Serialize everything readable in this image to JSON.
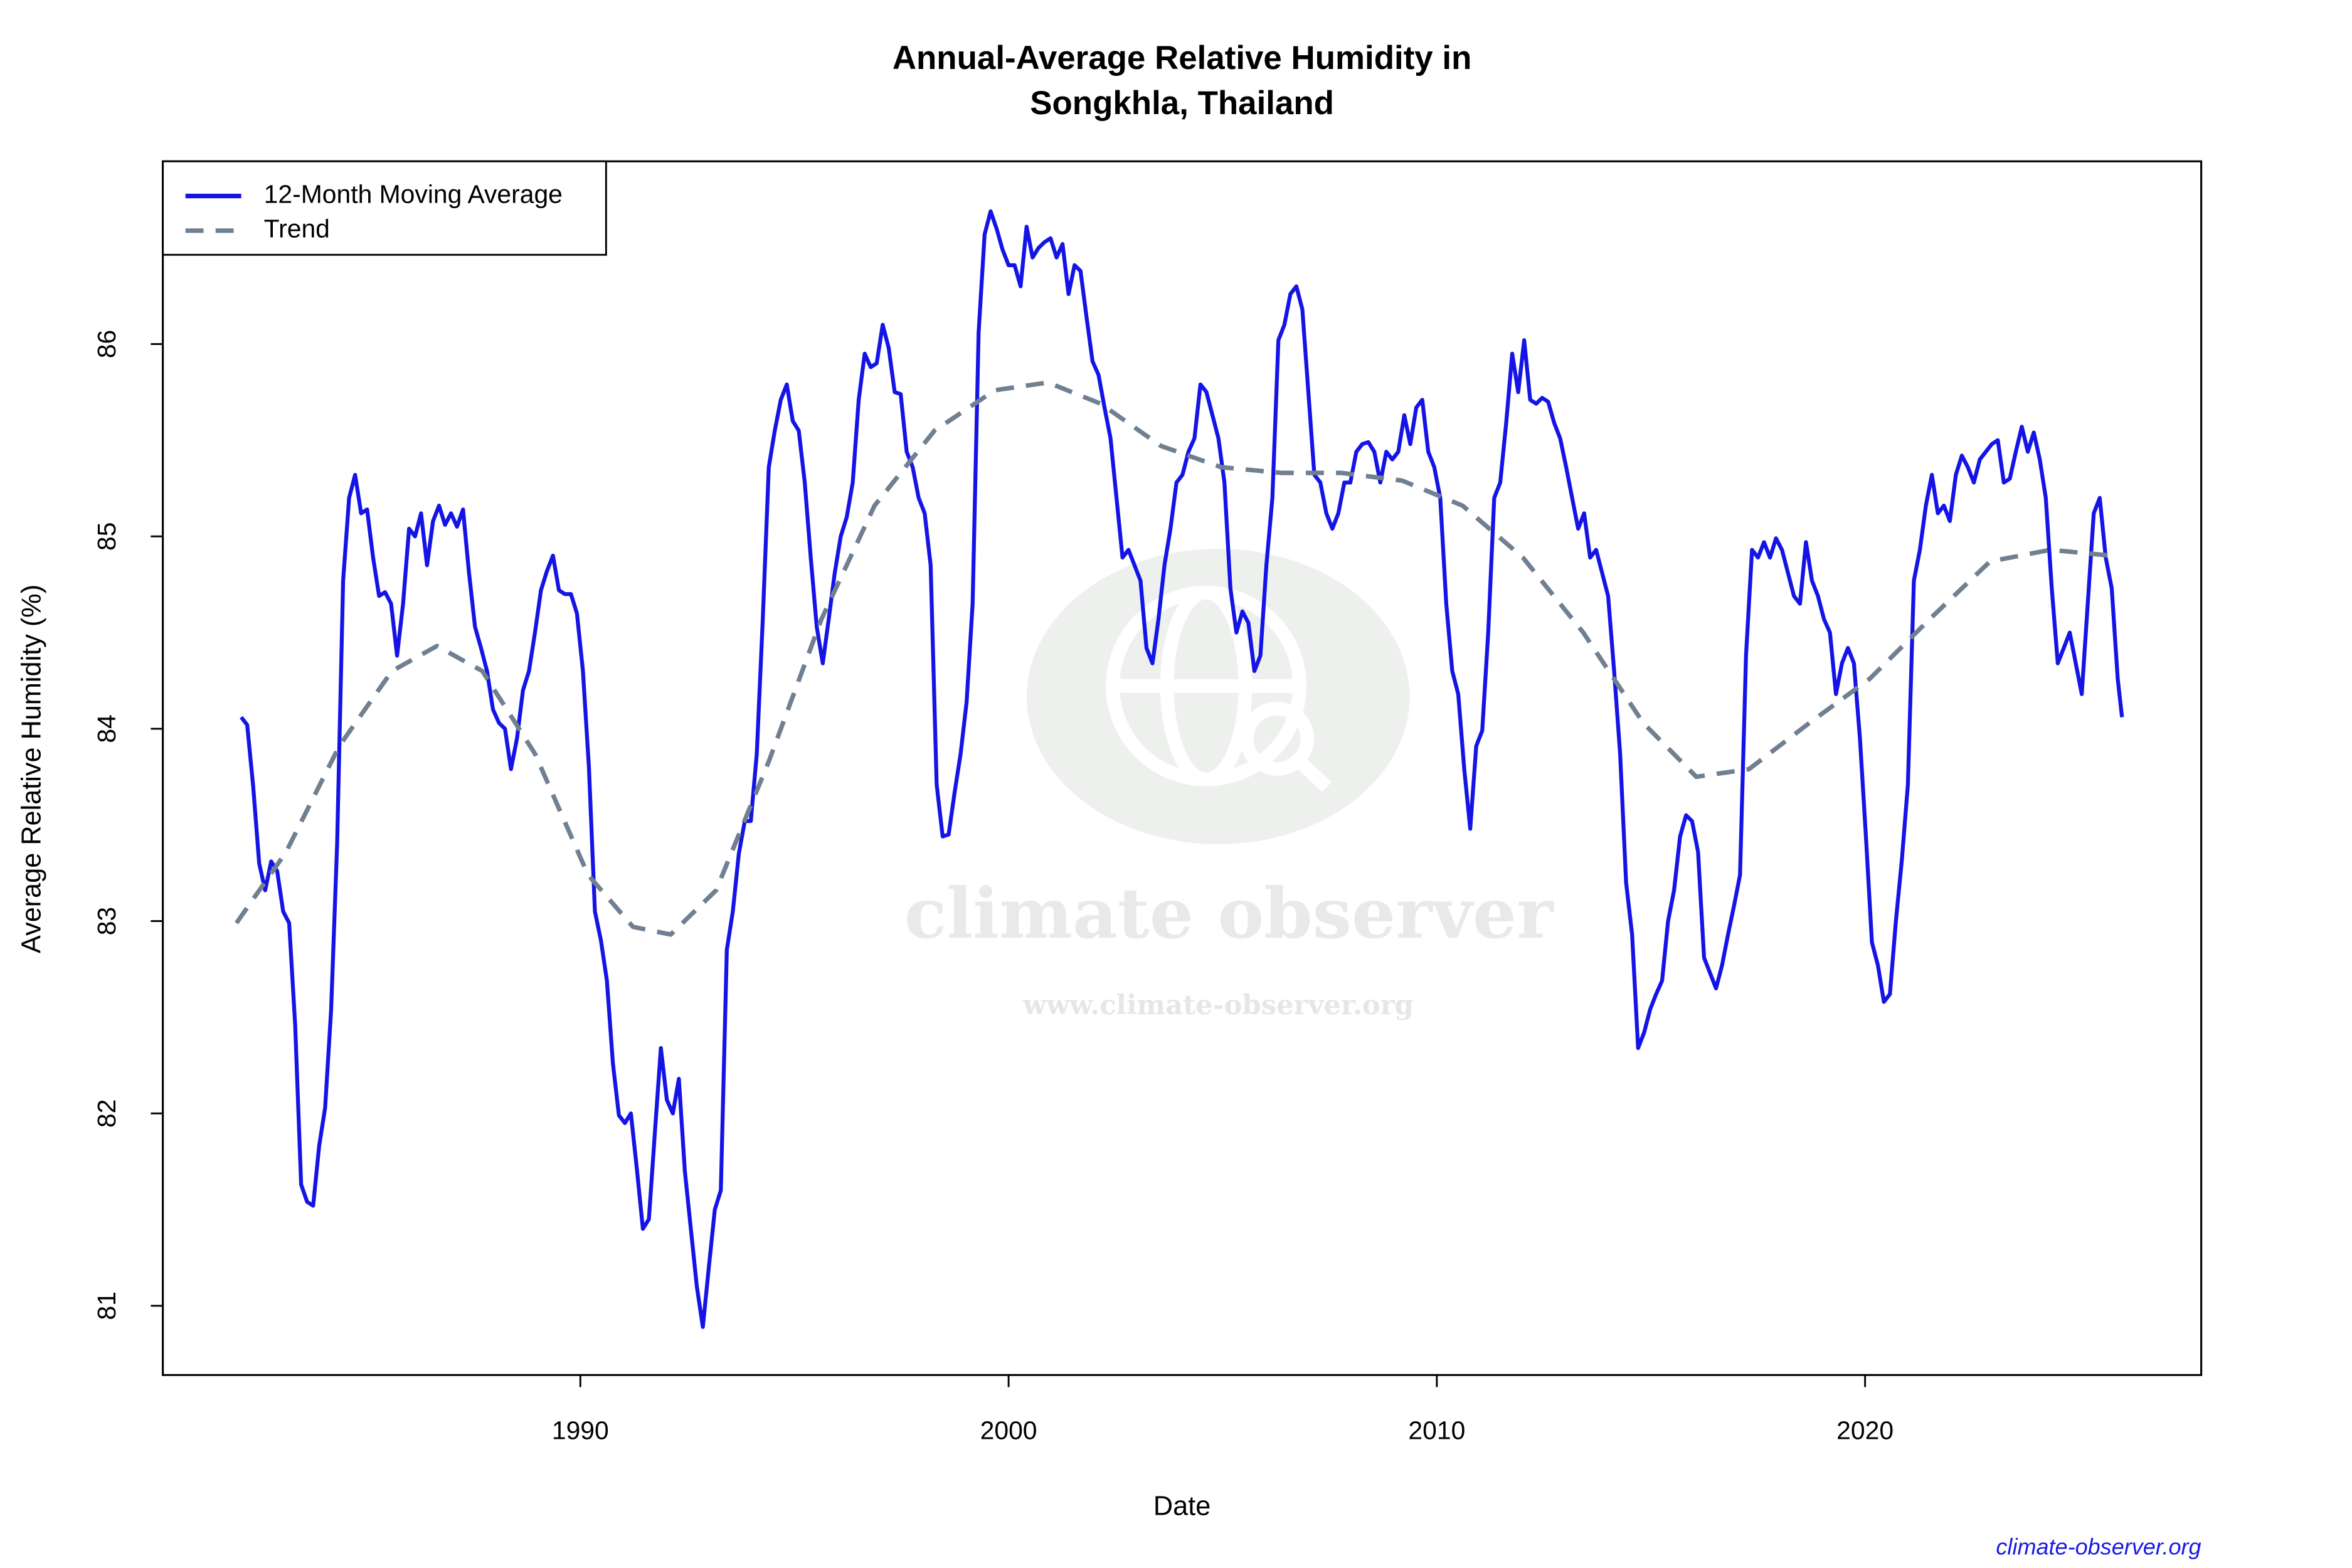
{
  "chart_data": {
    "type": "line",
    "title": [
      "Annual-Average Relative Humidity in",
      "Songkhla, Thailand"
    ],
    "xlabel": "Date",
    "ylabel": "Average Relative Humidity (%)",
    "source": "climate-observer.org",
    "watermark": [
      "climate observer",
      "www.climate-observer.org"
    ],
    "xlim": [
      1980.25,
      2027.85
    ],
    "ylim": [
      80.64,
      86.95
    ],
    "xticks": [
      1990,
      2000,
      2010,
      2020
    ],
    "yticks": [
      81,
      82,
      83,
      84,
      85,
      86
    ],
    "grid": false,
    "legend": "top-left",
    "series": [
      {
        "name": "12-Month Moving Average",
        "color": "#1414e6",
        "linestyle": "solid",
        "x": [
          1982.08,
          1982.22,
          1982.36,
          1982.5,
          1982.64,
          1982.78,
          1982.92,
          1983.06,
          1983.2,
          1983.34,
          1983.48,
          1983.62,
          1983.76,
          1983.9,
          1984.04,
          1984.18,
          1984.32,
          1984.46,
          1984.6,
          1984.74,
          1984.88,
          1985.02,
          1985.16,
          1985.3,
          1985.44,
          1985.58,
          1985.72,
          1985.86,
          1986,
          1986.14,
          1986.28,
          1986.42,
          1986.56,
          1986.7,
          1986.84,
          1986.98,
          1987.12,
          1987.26,
          1987.4,
          1987.54,
          1987.68,
          1987.82,
          1987.96,
          1988.1,
          1988.24,
          1988.38,
          1988.52,
          1988.66,
          1988.8,
          1988.94,
          1989.08,
          1989.22,
          1989.36,
          1989.5,
          1989.64,
          1989.78,
          1989.92,
          1990.06,
          1990.2,
          1990.34,
          1990.48,
          1990.62,
          1990.76,
          1990.9,
          1991.04,
          1991.18,
          1991.32,
          1991.46,
          1991.6,
          1991.74,
          1991.88,
          1992.02,
          1992.16,
          1992.3,
          1992.44,
          1992.58,
          1992.72,
          1992.86,
          1993,
          1993.14,
          1993.28,
          1993.42,
          1993.56,
          1993.7,
          1993.84,
          1993.98,
          1994.12,
          1994.26,
          1994.4,
          1994.54,
          1994.68,
          1994.82,
          1994.96,
          1995.1,
          1995.24,
          1995.38,
          1995.52,
          1995.66,
          1995.8,
          1995.94,
          1996.08,
          1996.22,
          1996.36,
          1996.5,
          1996.64,
          1996.78,
          1996.92,
          1997.06,
          1997.2,
          1997.34,
          1997.48,
          1997.62,
          1997.76,
          1997.9,
          1998.04,
          1998.18,
          1998.32,
          1998.46,
          1998.6,
          1998.74,
          1998.88,
          1999.02,
          1999.16,
          1999.3,
          1999.44,
          1999.58,
          1999.72,
          1999.86,
          2000,
          2000.14,
          2000.28,
          2000.42,
          2000.56,
          2000.7,
          2000.84,
          2000.98,
          2001.12,
          2001.26,
          2001.4,
          2001.54,
          2001.68,
          2001.82,
          2001.96,
          2002.1,
          2002.24,
          2002.38,
          2002.52,
          2002.66,
          2002.8,
          2002.94,
          2003.08,
          2003.22,
          2003.36,
          2003.5,
          2003.64,
          2003.78,
          2003.92,
          2004.06,
          2004.2,
          2004.34,
          2004.48,
          2004.62,
          2004.76,
          2004.9,
          2005.04,
          2005.18,
          2005.32,
          2005.46,
          2005.6,
          2005.74,
          2005.88,
          2006.02,
          2006.16,
          2006.3,
          2006.44,
          2006.58,
          2006.72,
          2006.86,
          2007,
          2007.14,
          2007.28,
          2007.42,
          2007.56,
          2007.7,
          2007.84,
          2007.98,
          2008.12,
          2008.26,
          2008.4,
          2008.54,
          2008.68,
          2008.82,
          2008.96,
          2009.1,
          2009.24,
          2009.38,
          2009.52,
          2009.66,
          2009.8,
          2009.94,
          2010.08,
          2010.22,
          2010.36,
          2010.5,
          2010.64,
          2010.78,
          2010.92,
          2011.06,
          2011.2,
          2011.34,
          2011.48,
          2011.62,
          2011.76,
          2011.9,
          2012.04,
          2012.18,
          2012.32,
          2012.46,
          2012.6,
          2012.74,
          2012.88,
          2013.02,
          2013.16,
          2013.3,
          2013.44,
          2013.58,
          2013.72,
          2013.86,
          2014,
          2014.14,
          2014.28,
          2014.42,
          2014.56,
          2014.7,
          2014.84,
          2014.98,
          2015.12,
          2015.26,
          2015.4,
          2015.54,
          2015.68,
          2015.82,
          2015.96,
          2016.1,
          2016.24,
          2016.38,
          2016.52,
          2016.66,
          2016.8,
          2016.94,
          2017.08,
          2017.22,
          2017.36,
          2017.5,
          2017.64,
          2017.78,
          2017.92,
          2018.06,
          2018.2,
          2018.34,
          2018.48,
          2018.62,
          2018.76,
          2018.9,
          2019.04,
          2019.18,
          2019.32,
          2019.46,
          2019.6,
          2019.74,
          2019.88,
          2020.02,
          2020.16,
          2020.3,
          2020.44,
          2020.58,
          2020.72,
          2020.86,
          2021,
          2021.14,
          2021.28,
          2021.42,
          2021.56,
          2021.7,
          2021.84,
          2021.98,
          2022.12,
          2022.26,
          2022.4,
          2022.54,
          2022.68,
          2022.82,
          2022.96,
          2023.1,
          2023.24,
          2023.38,
          2023.52,
          2023.66,
          2023.8,
          2023.94,
          2024.08,
          2024.22,
          2024.36,
          2024.5,
          2024.64,
          2024.78,
          2024.92,
          2025.06,
          2025.2,
          2025.34,
          2025.48,
          2025.62,
          2025.76,
          2025.9,
          2026.0
        ],
        "values": [
          84.06,
          84.02,
          83.7,
          83.3,
          83.16,
          83.31,
          83.26,
          83.05,
          82.99,
          82.46,
          81.63,
          81.54,
          81.52,
          81.83,
          82.03,
          82.54,
          83.4,
          84.77,
          85.2,
          85.32,
          85.12,
          85.14,
          84.89,
          84.69,
          84.71,
          84.65,
          84.38,
          84.65,
          85.04,
          85.0,
          85.12,
          84.85,
          85.08,
          85.16,
          85.06,
          85.12,
          85.05,
          85.14,
          84.81,
          84.53,
          84.42,
          84.3,
          84.1,
          84.03,
          84.0,
          83.79,
          83.95,
          84.2,
          84.3,
          84.5,
          84.72,
          84.82,
          84.9,
          84.72,
          84.7,
          84.7,
          84.6,
          84.3,
          83.8,
          83.05,
          82.9,
          82.69,
          82.26,
          81.99,
          81.95,
          82.0,
          81.71,
          81.4,
          81.45,
          81.9,
          82.34,
          82.07,
          82.0,
          82.18,
          81.7,
          81.4,
          81.1,
          80.89,
          81.2,
          81.5,
          81.6,
          82.85,
          83.05,
          83.35,
          83.52,
          83.52,
          83.87,
          84.57,
          85.36,
          85.55,
          85.71,
          85.79,
          85.6,
          85.55,
          85.28,
          84.89,
          84.53,
          84.34,
          84.57,
          84.81,
          85.0,
          85.1,
          85.28,
          85.71,
          85.95,
          85.88,
          85.9,
          86.1,
          85.98,
          85.75,
          85.74,
          85.44,
          85.36,
          85.2,
          85.12,
          84.85,
          83.71,
          83.44,
          83.45,
          83.67,
          83.87,
          84.14,
          84.65,
          86.06,
          86.57,
          86.69,
          86.6,
          86.49,
          86.41,
          86.41,
          86.3,
          86.61,
          86.45,
          86.5,
          86.53,
          86.55,
          86.45,
          86.52,
          86.26,
          86.41,
          86.38,
          86.14,
          85.91,
          85.84,
          85.67,
          85.51,
          85.2,
          84.89,
          84.93,
          84.85,
          84.77,
          84.42,
          84.34,
          84.57,
          84.85,
          85.04,
          85.28,
          85.32,
          85.44,
          85.51,
          85.79,
          85.75,
          85.63,
          85.51,
          85.28,
          84.73,
          84.5,
          84.61,
          84.55,
          84.3,
          84.38,
          84.85,
          85.2,
          86.02,
          86.1,
          86.26,
          86.3,
          86.18,
          85.75,
          85.32,
          85.28,
          85.12,
          85.04,
          85.12,
          85.28,
          85.28,
          85.44,
          85.48,
          85.49,
          85.44,
          85.28,
          85.44,
          85.4,
          85.44,
          85.63,
          85.48,
          85.67,
          85.71,
          85.44,
          85.36,
          85.2,
          84.65,
          84.3,
          84.18,
          83.79,
          83.48,
          83.91,
          83.99,
          84.5,
          85.2,
          85.28,
          85.59,
          85.95,
          85.75,
          86.02,
          85.71,
          85.69,
          85.72,
          85.7,
          85.59,
          85.51,
          85.36,
          85.2,
          85.04,
          85.12,
          84.89,
          84.93,
          84.81,
          84.69,
          84.3,
          83.87,
          83.2,
          82.93,
          82.34,
          82.42,
          82.54,
          82.62,
          82.69,
          83.0,
          83.16,
          83.44,
          83.55,
          83.52,
          83.36,
          82.81,
          82.73,
          82.65,
          82.77,
          82.93,
          83.08,
          83.24,
          84.38,
          84.93,
          84.89,
          84.97,
          84.89,
          84.99,
          84.93,
          84.81,
          84.69,
          84.65,
          84.97,
          84.77,
          84.69,
          84.57,
          84.5,
          84.18,
          84.34,
          84.42,
          84.34,
          83.95,
          83.44,
          82.89,
          82.77,
          82.58,
          82.62,
          83.0,
          83.32,
          83.71,
          84.77,
          84.93,
          85.16,
          85.32,
          85.12,
          85.16,
          85.08,
          85.32,
          85.42,
          85.36,
          85.28,
          85.4,
          85.44,
          85.48,
          85.5,
          85.28,
          85.3,
          85.44,
          85.57,
          85.44,
          85.54,
          85.4,
          85.2,
          84.73,
          84.34,
          84.42,
          84.5,
          84.34,
          84.18,
          84.65,
          85.12,
          85.2,
          84.89,
          84.73,
          84.26,
          84.06
        ]
      },
      {
        "name": "Trend",
        "color": "#708090",
        "linestyle": "dashed",
        "x": [
          1981.97,
          1983.13,
          1984.37,
          1985.6,
          1986.65,
          1987.71,
          1988.94,
          1990.18,
          1991.23,
          1992.11,
          1993.17,
          1994.4,
          1995.63,
          1996.87,
          1998.27,
          1999.68,
          2000.92,
          2002.15,
          2003.56,
          2004.96,
          2006.37,
          2007.78,
          2009.19,
          2010.6,
          2012.01,
          2013.42,
          2014.82,
          2016.06,
          2017.29,
          2018.7,
          2020.11,
          2021.51,
          2022.92,
          2024.33,
          2025.74
        ],
        "values": [
          82.99,
          83.36,
          83.91,
          84.3,
          84.43,
          84.3,
          83.87,
          83.24,
          82.97,
          82.93,
          83.16,
          83.83,
          84.57,
          85.16,
          85.55,
          85.76,
          85.8,
          85.69,
          85.47,
          85.36,
          85.33,
          85.33,
          85.29,
          85.16,
          84.89,
          84.5,
          84.03,
          83.75,
          83.79,
          84.03,
          84.26,
          84.57,
          84.87,
          84.93,
          84.9
        ]
      }
    ]
  }
}
